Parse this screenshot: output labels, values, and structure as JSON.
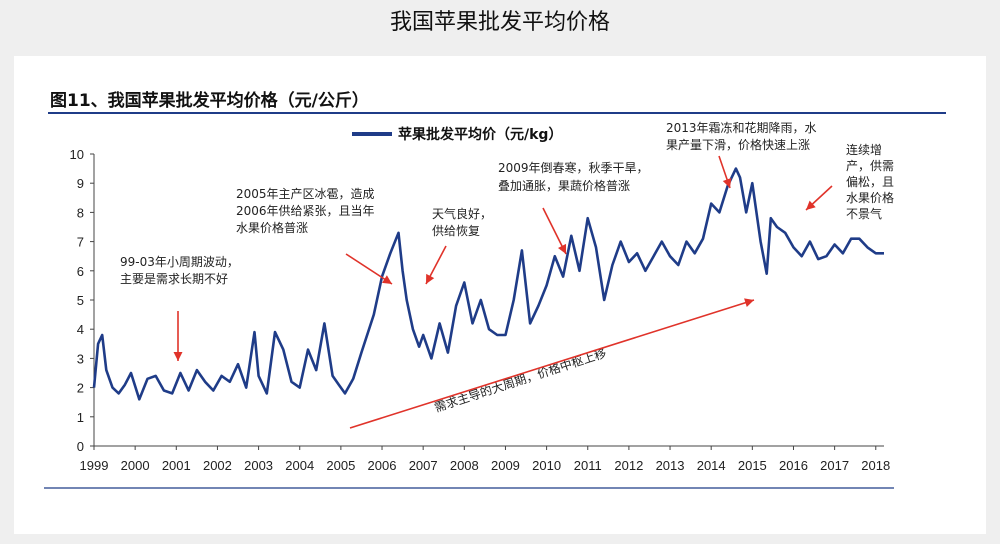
{
  "page": {
    "title": "我国苹果批发平均价格"
  },
  "figure": {
    "title": "图11、我国苹果批发平均价格（元/公斤）"
  },
  "chart_data": {
    "type": "line",
    "title": "图11、我国苹果批发平均价格（元/公斤）",
    "legend": {
      "label": "苹果批发平均价（元/kg）",
      "position": "top-center"
    },
    "ylim": [
      0,
      10
    ],
    "yticks": [
      0,
      1,
      2,
      3,
      4,
      5,
      6,
      7,
      8,
      9,
      10
    ],
    "xlim": [
      1999,
      2018.2
    ],
    "xticks": [
      1999,
      2000,
      2001,
      2002,
      2003,
      2004,
      2005,
      2006,
      2007,
      2008,
      2009,
      2010,
      2011,
      2012,
      2013,
      2014,
      2015,
      2016,
      2017,
      2018
    ],
    "series": [
      {
        "name": "苹果批发平均价（元/kg）",
        "color": "#1f3c88",
        "x": [
          1999.0,
          1999.1,
          1999.2,
          1999.3,
          1999.45,
          1999.6,
          1999.75,
          1999.9,
          2000.1,
          2000.3,
          2000.5,
          2000.7,
          2000.9,
          2001.1,
          2001.3,
          2001.5,
          2001.7,
          2001.9,
          2002.1,
          2002.3,
          2002.5,
          2002.7,
          2002.9,
          2003.0,
          2003.2,
          2003.4,
          2003.6,
          2003.8,
          2004.0,
          2004.2,
          2004.4,
          2004.6,
          2004.8,
          2004.95,
          2005.1,
          2005.3,
          2005.5,
          2005.8,
          2006.0,
          2006.2,
          2006.4,
          2006.5,
          2006.6,
          2006.75,
          2006.9,
          2007.0,
          2007.2,
          2007.4,
          2007.6,
          2007.8,
          2008.0,
          2008.2,
          2008.4,
          2008.6,
          2008.8,
          2009.0,
          2009.2,
          2009.4,
          2009.6,
          2009.8,
          2010.0,
          2010.2,
          2010.4,
          2010.6,
          2010.8,
          2011.0,
          2011.2,
          2011.4,
          2011.6,
          2011.8,
          2012.0,
          2012.2,
          2012.4,
          2012.6,
          2012.8,
          2013.0,
          2013.2,
          2013.4,
          2013.6,
          2013.8,
          2014.0,
          2014.2,
          2014.4,
          2014.6,
          2014.7,
          2014.85,
          2015.0,
          2015.2,
          2015.35,
          2015.45,
          2015.6,
          2015.8,
          2016.0,
          2016.2,
          2016.4,
          2016.6,
          2016.8,
          2017.0,
          2017.2,
          2017.4,
          2017.6,
          2017.8,
          2018.0,
          2018.2
        ],
        "y": [
          2.0,
          3.5,
          3.8,
          2.6,
          2.0,
          1.8,
          2.1,
          2.5,
          1.6,
          2.3,
          2.4,
          1.9,
          1.8,
          2.5,
          1.9,
          2.6,
          2.2,
          1.9,
          2.4,
          2.2,
          2.8,
          2.0,
          3.9,
          2.4,
          1.8,
          3.9,
          3.3,
          2.2,
          2.0,
          3.3,
          2.6,
          4.2,
          2.4,
          2.1,
          1.8,
          2.3,
          3.2,
          4.5,
          5.8,
          6.6,
          7.3,
          6.0,
          5.0,
          4.0,
          3.4,
          3.8,
          3.0,
          4.2,
          3.2,
          4.8,
          5.6,
          4.2,
          5.0,
          4.0,
          3.8,
          3.8,
          5.0,
          6.7,
          4.2,
          4.8,
          5.5,
          6.5,
          5.8,
          7.2,
          6.0,
          7.8,
          6.8,
          5.0,
          6.2,
          7.0,
          6.3,
          6.6,
          6.0,
          6.5,
          7.0,
          6.5,
          6.2,
          7.0,
          6.6,
          7.1,
          8.3,
          8.0,
          8.9,
          9.5,
          9.2,
          8.0,
          9.0,
          7.0,
          5.9,
          7.8,
          7.5,
          7.3,
          6.8,
          6.5,
          7.0,
          6.4,
          6.5,
          6.9,
          6.6,
          7.1,
          7.1,
          6.8,
          6.6,
          6.6
        ]
      }
    ],
    "annotations": [
      {
        "lines": [
          "99-03年小周期波动，",
          "主要是需求长期不好"
        ]
      },
      {
        "lines": [
          "2005年主产区冰雹，造成",
          "2006年供给紧张，且当年",
          "水果价格普涨"
        ]
      },
      {
        "lines": [
          "天气良好，",
          "供给恢复"
        ]
      },
      {
        "lines": [
          "2009年倒春寒，秋季干旱，",
          "叠加通胀，果蔬价格普涨"
        ]
      },
      {
        "lines": [
          "2013年霜冻和花期降雨，水",
          "果产量下滑，价格快速上涨"
        ]
      },
      {
        "lines": [
          "连续增",
          "产，供需",
          "偏松，且",
          "水果价格",
          "不景气"
        ]
      },
      {
        "lines": [
          "需求主导的大周期，价格中枢上移"
        ]
      }
    ]
  }
}
